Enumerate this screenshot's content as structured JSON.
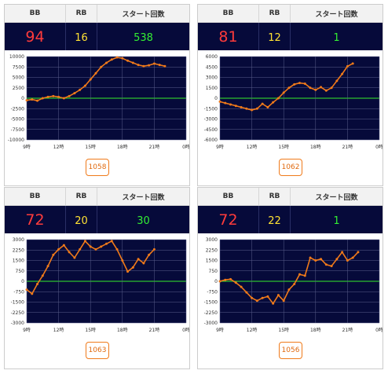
{
  "headers": {
    "bb": "BB",
    "rb": "RB",
    "start": "スタート回数"
  },
  "colors": {
    "panel": "#060a3a",
    "bb": "#ff3b3b",
    "rb": "#ffe233",
    "start": "#33ee33",
    "line": "#f07a1a",
    "zero": "#2ec02e",
    "grid": "#5a5f8c"
  },
  "x_labels": [
    "9時",
    "12時",
    "15時",
    "18時",
    "21時",
    "0時"
  ],
  "machines": [
    {
      "bb": "94",
      "rb": "16",
      "start": "538",
      "number": "1058",
      "chart_data": {
        "type": "line",
        "xlim": [
          9,
          24
        ],
        "ylim": [
          -10000,
          10000
        ],
        "ytick_labels": [
          "10000",
          "7500",
          "5000",
          "2500",
          "0",
          "-2500",
          "-5000",
          "-7500",
          "-10000"
        ],
        "x": [
          9,
          9.5,
          10,
          10.5,
          11,
          11.5,
          12,
          12.5,
          13,
          13.5,
          14,
          14.5,
          15,
          15.5,
          16,
          16.5,
          17,
          17.5,
          18,
          18.5,
          19,
          19.5,
          20,
          20.5,
          21,
          21.5,
          22
        ],
        "y": [
          -500,
          -300,
          -600,
          0,
          300,
          500,
          300,
          0,
          500,
          1200,
          2000,
          3000,
          4500,
          6000,
          7500,
          8500,
          9300,
          9800,
          9600,
          9000,
          8500,
          8000,
          7700,
          7900,
          8300,
          8000,
          7700
        ]
      }
    },
    {
      "bb": "81",
      "rb": "12",
      "start": "1",
      "number": "1062",
      "chart_data": {
        "type": "line",
        "xlim": [
          9,
          24
        ],
        "ylim": [
          -6000,
          6000
        ],
        "ytick_labels": [
          "6000",
          "4500",
          "3000",
          "1500",
          "0",
          "-1500",
          "-3000",
          "-4500",
          "-6000"
        ],
        "x": [
          9,
          9.5,
          10,
          10.5,
          11,
          11.5,
          12,
          12.5,
          13,
          13.5,
          14,
          14.5,
          15,
          15.5,
          16,
          16.5,
          17,
          17.5,
          18,
          18.5,
          19,
          19.5,
          20,
          20.5,
          21,
          21.5
        ],
        "y": [
          -500,
          -700,
          -900,
          -1100,
          -1300,
          -1500,
          -1700,
          -1500,
          -800,
          -1300,
          -600,
          0,
          800,
          1500,
          2000,
          2200,
          2100,
          1500,
          1200,
          1600,
          1100,
          1500,
          2500,
          3500,
          4600,
          5000
        ]
      }
    },
    {
      "bb": "72",
      "rb": "20",
      "start": "30",
      "number": "1063",
      "chart_data": {
        "type": "line",
        "xlim": [
          9,
          24
        ],
        "ylim": [
          -3000,
          3000
        ],
        "ytick_labels": [
          "3000",
          "2250",
          "1500",
          "750",
          "0",
          "-750",
          "-1500",
          "-2250",
          "-3000"
        ],
        "x": [
          9,
          9.5,
          10,
          10.5,
          11,
          11.5,
          12,
          12.5,
          13,
          13.5,
          14,
          14.5,
          15,
          15.5,
          16,
          16.5,
          17,
          17.5,
          18,
          18.5,
          19,
          19.5,
          20,
          20.5,
          21
        ],
        "y": [
          -600,
          -900,
          -200,
          400,
          1100,
          1900,
          2300,
          2600,
          2100,
          1700,
          2300,
          2900,
          2500,
          2300,
          2500,
          2700,
          2900,
          2300,
          1500,
          700,
          1000,
          1600,
          1300,
          1900,
          2300
        ]
      }
    },
    {
      "bb": "72",
      "rb": "22",
      "start": "1",
      "number": "1056",
      "chart_data": {
        "type": "line",
        "xlim": [
          9,
          24
        ],
        "ylim": [
          -3000,
          3000
        ],
        "ytick_labels": [
          "3000",
          "2250",
          "1500",
          "750",
          "0",
          "-750",
          "-1500",
          "-2250",
          "-3000"
        ],
        "x": [
          9,
          9.5,
          10,
          10.5,
          11,
          11.5,
          12,
          12.5,
          13,
          13.5,
          14,
          14.5,
          15,
          15.5,
          16,
          16.5,
          17,
          17.5,
          18,
          18.5,
          19,
          19.5,
          20,
          20.5,
          21,
          21.5,
          22
        ],
        "y": [
          0,
          100,
          150,
          -100,
          -400,
          -800,
          -1200,
          -1400,
          -1200,
          -1100,
          -1600,
          -1000,
          -1400,
          -600,
          -200,
          500,
          400,
          1700,
          1500,
          1600,
          1200,
          1100,
          1600,
          2100,
          1500,
          1700,
          2100
        ]
      }
    }
  ]
}
